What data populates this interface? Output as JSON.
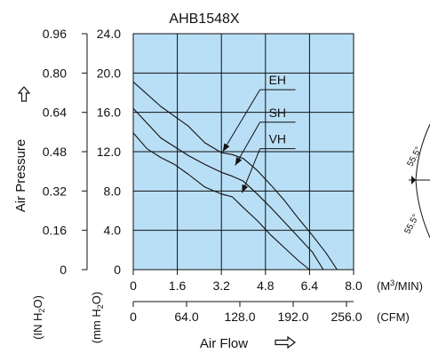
{
  "chart_data": {
    "type": "line",
    "title": "AHB1548X",
    "xlabel": "Air Flow",
    "ylabel": "Air Pressure",
    "x_tick_labels_m3min": [
      "0",
      "1.6",
      "3.2",
      "4.8",
      "6.4",
      "8.0"
    ],
    "x_unit_m3min": "(M3/MIN)",
    "x_tick_labels_cfm": [
      "0",
      "64.0",
      "128.0",
      "192.0",
      "256.0"
    ],
    "x_unit_cfm": "(CFM)",
    "y_tick_labels_inh2o": [
      "0",
      "0.16",
      "0.32",
      "0.48",
      "0.64",
      "0.80",
      "0.96"
    ],
    "y_unit_inh2o": "(IN H2O)",
    "y_tick_labels_mmh2o": [
      "0",
      "4.0",
      "8.0",
      "12.0",
      "16.0",
      "20.0",
      "24.0"
    ],
    "y_unit_mmh2o": "(mm H2O)",
    "xlim": [
      0,
      8.0
    ],
    "ylim": [
      0,
      24.0
    ],
    "grid": true,
    "background_color": "#b9dff6",
    "series": [
      {
        "name": "EH",
        "points": [
          [
            0,
            19.1
          ],
          [
            1.0,
            16.6
          ],
          [
            2.0,
            14.6
          ],
          [
            2.6,
            12.9
          ],
          [
            3.2,
            11.9
          ],
          [
            3.6,
            11.7
          ],
          [
            4.0,
            11.3
          ],
          [
            4.5,
            10.1
          ],
          [
            5.0,
            8.6
          ],
          [
            5.5,
            7.0
          ],
          [
            6.0,
            5.2
          ],
          [
            6.5,
            3.5
          ],
          [
            7.0,
            1.7
          ],
          [
            7.4,
            0.0
          ]
        ]
      },
      {
        "name": "SH",
        "points": [
          [
            0,
            16.4
          ],
          [
            1.0,
            13.4
          ],
          [
            2.0,
            11.6
          ],
          [
            2.6,
            10.7
          ],
          [
            3.2,
            9.9
          ],
          [
            3.6,
            9.5
          ],
          [
            4.0,
            9.0
          ],
          [
            4.5,
            7.7
          ],
          [
            5.0,
            6.3
          ],
          [
            5.5,
            4.8
          ],
          [
            6.0,
            3.3
          ],
          [
            6.5,
            1.8
          ],
          [
            6.9,
            0.0
          ]
        ]
      },
      {
        "name": "VH",
        "points": [
          [
            0,
            13.9
          ],
          [
            0.5,
            12.3
          ],
          [
            1.0,
            11.4
          ],
          [
            1.5,
            10.7
          ],
          [
            2.0,
            9.7
          ],
          [
            2.6,
            8.4
          ],
          [
            3.2,
            7.7
          ],
          [
            3.6,
            7.4
          ],
          [
            4.0,
            6.3
          ],
          [
            4.5,
            5.0
          ],
          [
            5.0,
            3.5
          ],
          [
            5.5,
            2.2
          ],
          [
            6.0,
            0.9
          ],
          [
            6.4,
            0.0
          ]
        ]
      }
    ],
    "annotations": [
      {
        "label": "EH",
        "text_x": 4.6,
        "text_y": 18.3,
        "arrow_to": [
          3.25,
          12.0
        ]
      },
      {
        "label": "SH",
        "text_x": 4.6,
        "text_y": 15.0,
        "arrow_to": [
          3.7,
          10.6
        ]
      },
      {
        "label": "VH",
        "text_x": 4.6,
        "text_y": 12.3,
        "arrow_to": [
          3.95,
          7.8
        ]
      }
    ],
    "side_labels": [
      "55.5°",
      "55.5°"
    ]
  },
  "colors": {
    "plot_fill": "#b9dff6",
    "ink": "#111111"
  },
  "icons": {
    "y_arrow": "up-arrow-outline-icon",
    "x_arrow": "right-arrow-outline-icon"
  }
}
